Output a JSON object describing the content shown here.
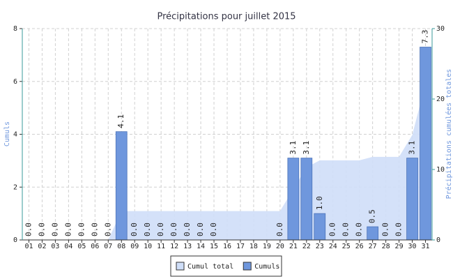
{
  "chart_data": {
    "type": "bar",
    "title": "Précipitations pour juillet 2015",
    "y_label": "Cumuls",
    "y2_label": "Précipitations cumulées totales",
    "categories": [
      "01",
      "02",
      "03",
      "04",
      "05",
      "06",
      "07",
      "08",
      "09",
      "10",
      "11",
      "12",
      "13",
      "14",
      "15",
      "16",
      "17",
      "18",
      "19",
      "20",
      "21",
      "22",
      "23",
      "24",
      "25",
      "26",
      "27",
      "28",
      "29",
      "30",
      "31"
    ],
    "series": [
      {
        "name": "Cumul total",
        "type": "area",
        "axis": "y2",
        "color": "#cfdef8",
        "values": [
          0,
          0,
          0,
          0,
          0,
          0,
          0,
          4.1,
          4.1,
          4.1,
          4.1,
          4.1,
          4.1,
          4.1,
          4.1,
          4.1,
          4.1,
          4.1,
          4.1,
          4.1,
          7.2,
          10.3,
          11.3,
          11.3,
          11.3,
          11.3,
          11.8,
          11.8,
          11.8,
          14.9,
          22.2
        ]
      },
      {
        "name": "Cumuls",
        "type": "bar",
        "color": "#6f97dd",
        "values": [
          0,
          0,
          0,
          0,
          0,
          0,
          0,
          4.1,
          0,
          0,
          0,
          0,
          0,
          0,
          0,
          null,
          null,
          null,
          null,
          0,
          3.1,
          3.1,
          1.0,
          0,
          0,
          0,
          0.5,
          0,
          0,
          3.1,
          7.3
        ],
        "value_labels": [
          "0.0",
          "0.0",
          "0.0",
          "0.0",
          "0.0",
          "0.0",
          "0.0",
          "4.1",
          "0.0",
          "0.0",
          "0.0",
          "0.0",
          "0.0",
          "0.0",
          "0.0",
          null,
          null,
          null,
          null,
          "0.0",
          "3.1",
          "3.1",
          "1.0",
          "0.0",
          "0.0",
          "0.0",
          "0.5",
          "0.0",
          "0.0",
          "3.1",
          "7.3"
        ]
      }
    ],
    "ylim": [
      0,
      8
    ],
    "yticks": [
      0,
      2,
      4,
      6,
      8
    ],
    "y2lim": [
      0,
      30
    ],
    "y2ticks": [
      0,
      10,
      20,
      30
    ],
    "grid": true,
    "legend": "bottom"
  }
}
